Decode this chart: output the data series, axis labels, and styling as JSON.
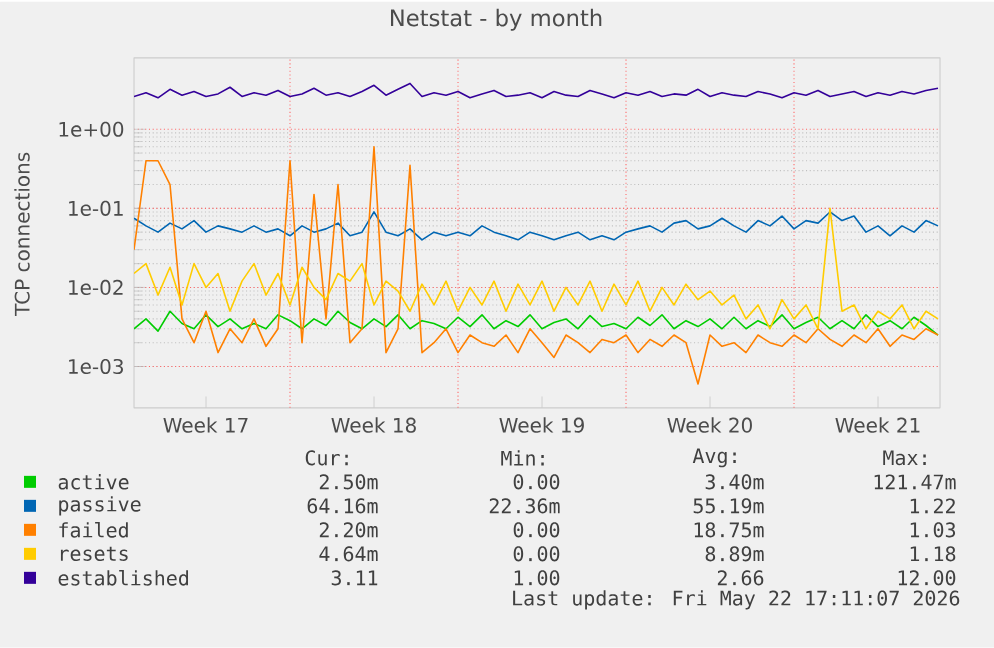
{
  "chart_data": {
    "type": "line",
    "title": "Netstat - by month",
    "ylabel": "TCP connections",
    "x": [
      "2026-04-20T12:00",
      "2026-04-21T00:00",
      "2026-04-21T12:00",
      "2026-04-22T00:00",
      "2026-04-22T12:00",
      "2026-04-23T00:00",
      "2026-04-23T12:00",
      "2026-04-24T00:00",
      "2026-04-24T12:00",
      "2026-04-25T00:00",
      "2026-04-25T12:00",
      "2026-04-26T00:00",
      "2026-04-26T12:00",
      "2026-04-27T00:00",
      "2026-04-27T12:00",
      "2026-04-28T00:00",
      "2026-04-28T12:00",
      "2026-04-29T00:00",
      "2026-04-29T12:00",
      "2026-04-30T00:00",
      "2026-04-30T12:00",
      "2026-05-01T00:00",
      "2026-05-01T12:00",
      "2026-05-02T00:00",
      "2026-05-02T12:00",
      "2026-05-03T00:00",
      "2026-05-03T12:00",
      "2026-05-04T00:00",
      "2026-05-04T12:00",
      "2026-05-05T00:00",
      "2026-05-05T12:00",
      "2026-05-06T00:00",
      "2026-05-06T12:00",
      "2026-05-07T00:00",
      "2026-05-07T12:00",
      "2026-05-08T00:00",
      "2026-05-08T12:00",
      "2026-05-09T00:00",
      "2026-05-09T12:00",
      "2026-05-10T00:00",
      "2026-05-10T12:00",
      "2026-05-11T00:00",
      "2026-05-11T12:00",
      "2026-05-12T00:00",
      "2026-05-12T12:00",
      "2026-05-13T00:00",
      "2026-05-13T12:00",
      "2026-05-14T00:00",
      "2026-05-14T12:00",
      "2026-05-15T00:00",
      "2026-05-15T12:00",
      "2026-05-16T00:00",
      "2026-05-16T12:00",
      "2026-05-17T00:00",
      "2026-05-17T12:00",
      "2026-05-18T00:00",
      "2026-05-18T12:00",
      "2026-05-19T00:00",
      "2026-05-19T12:00",
      "2026-05-20T00:00",
      "2026-05-20T12:00",
      "2026-05-21T00:00",
      "2026-05-21T12:00",
      "2026-05-22T00:00",
      "2026-05-22T12:00",
      "2026-05-23T00:00",
      "2026-05-23T12:00",
      "2026-05-24T00:00"
    ],
    "xlim": [
      "2026-04-20T12:00",
      "2026-05-24T02:00"
    ],
    "xticks": [
      {
        "value": "2026-04-23T12:00",
        "label": "Week 17"
      },
      {
        "value": "2026-04-27T00:00",
        "label": null
      },
      {
        "value": "2026-04-30T12:00",
        "label": "Week 18"
      },
      {
        "value": "2026-05-04T00:00",
        "label": null
      },
      {
        "value": "2026-05-07T12:00",
        "label": "Week 19"
      },
      {
        "value": "2026-05-11T00:00",
        "label": null
      },
      {
        "value": "2026-05-14T12:00",
        "label": "Week 20"
      },
      {
        "value": "2026-05-18T00:00",
        "label": null
      },
      {
        "value": "2026-05-21T12:00",
        "label": "Week 21"
      }
    ],
    "ylim": [
      0.0003,
      8
    ],
    "log": "y",
    "yticks": [
      {
        "value": 0.001,
        "label": "1e-03"
      },
      {
        "value": 0.01,
        "label": "1e-02"
      },
      {
        "value": 0.1,
        "label": "1e-01"
      },
      {
        "value": 1,
        "label": "1e+00"
      }
    ],
    "grid": true,
    "legend": "bottom",
    "series": [
      {
        "name": "active",
        "color": "#00cc00",
        "values": [
          0.003,
          0.004,
          0.0028,
          0.005,
          0.0035,
          0.003,
          0.0045,
          0.0032,
          0.004,
          0.003,
          0.0035,
          0.003,
          0.0045,
          0.0038,
          0.003,
          0.004,
          0.0033,
          0.005,
          0.0036,
          0.003,
          0.004,
          0.0032,
          0.0045,
          0.003,
          0.0038,
          0.0035,
          0.003,
          0.0042,
          0.0032,
          0.0045,
          0.003,
          0.0038,
          0.0032,
          0.0045,
          0.003,
          0.0036,
          0.004,
          0.003,
          0.0044,
          0.0032,
          0.0035,
          0.003,
          0.0042,
          0.0033,
          0.0045,
          0.003,
          0.0038,
          0.0032,
          0.004,
          0.003,
          0.0042,
          0.003,
          0.0038,
          0.0032,
          0.0045,
          0.003,
          0.0036,
          0.0042,
          0.003,
          0.0038,
          0.003,
          0.0045,
          0.0032,
          0.0038,
          0.003,
          0.0042,
          0.0033,
          0.0025
        ]
      },
      {
        "name": "passive",
        "color": "#0066b3",
        "values": [
          0.075,
          0.06,
          0.05,
          0.065,
          0.055,
          0.07,
          0.05,
          0.06,
          0.055,
          0.05,
          0.06,
          0.05,
          0.055,
          0.045,
          0.06,
          0.05,
          0.055,
          0.065,
          0.045,
          0.05,
          0.09,
          0.05,
          0.045,
          0.055,
          0.04,
          0.05,
          0.045,
          0.05,
          0.045,
          0.06,
          0.05,
          0.045,
          0.04,
          0.05,
          0.045,
          0.04,
          0.045,
          0.05,
          0.04,
          0.045,
          0.04,
          0.05,
          0.055,
          0.06,
          0.05,
          0.065,
          0.07,
          0.055,
          0.06,
          0.075,
          0.06,
          0.05,
          0.07,
          0.06,
          0.08,
          0.055,
          0.07,
          0.065,
          0.09,
          0.07,
          0.08,
          0.05,
          0.06,
          0.045,
          0.06,
          0.05,
          0.07,
          0.06
        ]
      },
      {
        "name": "failed",
        "color": "#ff8000",
        "values": [
          0.03,
          0.4,
          0.4,
          0.2,
          0.004,
          0.002,
          0.005,
          0.0015,
          0.003,
          0.002,
          0.004,
          0.0018,
          0.003,
          0.4,
          0.002,
          0.15,
          0.004,
          0.2,
          0.002,
          0.003,
          0.6,
          0.0015,
          0.003,
          0.35,
          0.0015,
          0.002,
          0.003,
          0.0015,
          0.0025,
          0.002,
          0.0018,
          0.0025,
          0.0015,
          0.003,
          0.002,
          0.0013,
          0.0025,
          0.002,
          0.0015,
          0.0022,
          0.002,
          0.0025,
          0.0015,
          0.0022,
          0.0018,
          0.0025,
          0.002,
          0.0006,
          0.0025,
          0.0018,
          0.002,
          0.0015,
          0.0025,
          0.002,
          0.0018,
          0.0025,
          0.002,
          0.003,
          0.0022,
          0.0018,
          0.0025,
          0.002,
          0.003,
          0.0018,
          0.0025,
          0.0022,
          0.003,
          0.0025
        ]
      },
      {
        "name": "resets",
        "color": "#ffcc00",
        "values": [
          0.015,
          0.02,
          0.008,
          0.018,
          0.006,
          0.02,
          0.01,
          0.015,
          0.005,
          0.012,
          0.02,
          0.008,
          0.015,
          0.006,
          0.018,
          0.01,
          0.007,
          0.015,
          0.012,
          0.02,
          0.006,
          0.012,
          0.009,
          0.005,
          0.011,
          0.006,
          0.012,
          0.005,
          0.01,
          0.006,
          0.012,
          0.005,
          0.011,
          0.006,
          0.012,
          0.005,
          0.01,
          0.006,
          0.012,
          0.005,
          0.011,
          0.006,
          0.012,
          0.005,
          0.01,
          0.006,
          0.011,
          0.007,
          0.009,
          0.006,
          0.008,
          0.004,
          0.006,
          0.003,
          0.007,
          0.004,
          0.006,
          0.003,
          0.1,
          0.005,
          0.006,
          0.003,
          0.005,
          0.004,
          0.006,
          0.003,
          0.005,
          0.004
        ]
      },
      {
        "name": "established",
        "color": "#330099",
        "values": [
          2.6,
          2.9,
          2.5,
          3.2,
          2.7,
          3.0,
          2.6,
          2.8,
          3.4,
          2.6,
          2.9,
          2.7,
          3.1,
          2.6,
          2.8,
          3.3,
          2.7,
          2.9,
          2.6,
          3.0,
          3.6,
          2.7,
          3.2,
          3.8,
          2.6,
          2.9,
          2.7,
          3.0,
          2.5,
          2.8,
          3.1,
          2.6,
          2.7,
          2.9,
          2.5,
          3.0,
          2.7,
          2.6,
          3.1,
          2.8,
          2.5,
          2.9,
          2.7,
          3.0,
          2.6,
          2.8,
          2.7,
          3.2,
          2.6,
          2.9,
          2.7,
          2.6,
          3.0,
          2.8,
          2.5,
          2.9,
          2.7,
          3.1,
          2.6,
          2.8,
          3.0,
          2.6,
          2.9,
          2.7,
          3.0,
          2.8,
          3.1,
          3.3
        ]
      }
    ],
    "annotations": [
      "Cur:",
      "Min:",
      "Avg:",
      "Max:",
      "2.50m",
      "0.00",
      "3.40m",
      "121.47m",
      "64.16m",
      "22.36m",
      "55.19m",
      "1.22",
      "2.20m",
      "0.00",
      "18.75m",
      "1.03",
      "4.64m",
      "0.00",
      "8.89m",
      "1.18",
      "3.11",
      "1.00",
      "2.66",
      "12.00",
      "Last update: Fri May 22 17:11:07 2026"
    ]
  }
}
